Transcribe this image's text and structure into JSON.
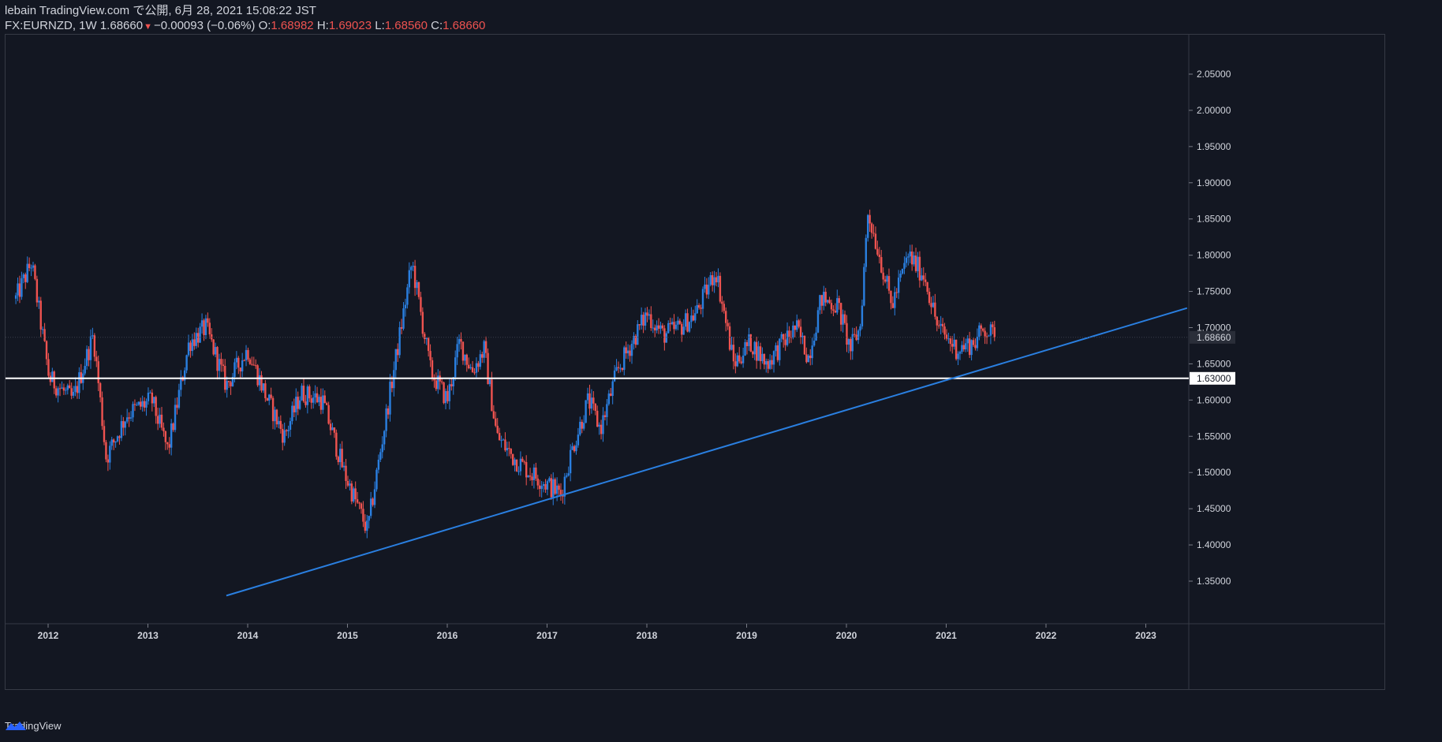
{
  "header": {
    "line1": "lebain TradingView.com で公開, 6月 28, 2021 15:08:22 JST",
    "symbol": "FX:EURNZD, 1W",
    "last": "1.68660",
    "change": "−0.00093 (−0.06%)",
    "o_label": "O:",
    "o_value": "1.68982",
    "h_label": "H:",
    "h_value": "1.69023",
    "l_label": "L:",
    "l_value": "1.68560",
    "c_label": "C:",
    "c_value": "1.68660"
  },
  "footer": {
    "brand": "TradingView"
  },
  "colors": {
    "bg": "#131722",
    "up": "#2a7fe0",
    "down": "#ef5350",
    "trend": "#2a7fe0",
    "level": "#ffffff"
  },
  "chart_data": {
    "type": "candlestick",
    "y_ticks": [
      "2.05000",
      "2.00000",
      "1.95000",
      "1.90000",
      "1.85000",
      "1.80000",
      "1.75000",
      "1.70000",
      "1.65000",
      "1.60000",
      "1.55000",
      "1.50000",
      "1.45000",
      "1.40000",
      "1.35000"
    ],
    "x_ticks": [
      "2012",
      "2013",
      "2014",
      "2015",
      "2016",
      "2017",
      "2018",
      "2019",
      "2020",
      "2021",
      "2022",
      "2023"
    ],
    "price_label": "1.68660",
    "level_label": "1.63000",
    "horizontal_level": 1.63,
    "trendline": [
      {
        "date": "2013-10-15",
        "price": 1.33
      },
      {
        "date": "2023-06-01",
        "price": 1.727
      }
    ],
    "key_points": [
      {
        "date": "2011-09-05",
        "price": 1.74
      },
      {
        "date": "2011-11-01",
        "price": 1.79
      },
      {
        "date": "2012-01-05",
        "price": 1.63
      },
      {
        "date": "2012-04-01",
        "price": 1.6
      },
      {
        "date": "2012-06-15",
        "price": 1.69
      },
      {
        "date": "2012-08-01",
        "price": 1.52
      },
      {
        "date": "2012-10-15",
        "price": 1.58
      },
      {
        "date": "2013-01-15",
        "price": 1.6
      },
      {
        "date": "2013-03-15",
        "price": 1.53
      },
      {
        "date": "2013-06-01",
        "price": 1.68
      },
      {
        "date": "2013-08-01",
        "price": 1.7
      },
      {
        "date": "2013-10-15",
        "price": 1.62
      },
      {
        "date": "2014-01-01",
        "price": 1.67
      },
      {
        "date": "2014-03-15",
        "price": 1.6
      },
      {
        "date": "2014-05-15",
        "price": 1.55
      },
      {
        "date": "2014-07-15",
        "price": 1.61
      },
      {
        "date": "2014-10-01",
        "price": 1.6
      },
      {
        "date": "2014-12-20",
        "price": 1.5
      },
      {
        "date": "2015-03-15",
        "price": 1.42
      },
      {
        "date": "2015-06-01",
        "price": 1.6
      },
      {
        "date": "2015-08-25",
        "price": 1.79
      },
      {
        "date": "2015-11-01",
        "price": 1.64
      },
      {
        "date": "2016-01-01",
        "price": 1.6
      },
      {
        "date": "2016-02-15",
        "price": 1.68
      },
      {
        "date": "2016-04-01",
        "price": 1.64
      },
      {
        "date": "2016-05-15",
        "price": 1.67
      },
      {
        "date": "2016-07-01",
        "price": 1.55
      },
      {
        "date": "2016-09-01",
        "price": 1.52
      },
      {
        "date": "2016-11-01",
        "price": 1.5
      },
      {
        "date": "2017-01-15",
        "price": 1.48
      },
      {
        "date": "2017-02-20",
        "price": 1.47
      },
      {
        "date": "2017-04-01",
        "price": 1.53
      },
      {
        "date": "2017-06-01",
        "price": 1.6
      },
      {
        "date": "2017-07-15",
        "price": 1.56
      },
      {
        "date": "2017-09-15",
        "price": 1.64
      },
      {
        "date": "2018-01-01",
        "price": 1.72
      },
      {
        "date": "2018-03-01",
        "price": 1.69
      },
      {
        "date": "2018-05-01",
        "price": 1.7
      },
      {
        "date": "2018-07-01",
        "price": 1.72
      },
      {
        "date": "2018-09-10",
        "price": 1.78
      },
      {
        "date": "2018-11-15",
        "price": 1.65
      },
      {
        "date": "2019-01-15",
        "price": 1.68
      },
      {
        "date": "2019-03-15",
        "price": 1.65
      },
      {
        "date": "2019-05-15",
        "price": 1.68
      },
      {
        "date": "2019-07-01",
        "price": 1.7
      },
      {
        "date": "2019-08-15",
        "price": 1.66
      },
      {
        "date": "2019-10-01",
        "price": 1.74
      },
      {
        "date": "2019-12-01",
        "price": 1.73
      },
      {
        "date": "2020-01-15",
        "price": 1.67
      },
      {
        "date": "2020-02-20",
        "price": 1.7
      },
      {
        "date": "2020-03-20",
        "price": 1.86
      },
      {
        "date": "2020-05-01",
        "price": 1.8
      },
      {
        "date": "2020-06-15",
        "price": 1.73
      },
      {
        "date": "2020-08-15",
        "price": 1.8
      },
      {
        "date": "2020-10-15",
        "price": 1.77
      },
      {
        "date": "2020-12-01",
        "price": 1.7
      },
      {
        "date": "2021-02-10",
        "price": 1.67
      },
      {
        "date": "2021-04-15",
        "price": 1.68
      },
      {
        "date": "2021-05-20",
        "price": 1.7
      },
      {
        "date": "2021-06-28",
        "price": 1.6866
      }
    ]
  }
}
